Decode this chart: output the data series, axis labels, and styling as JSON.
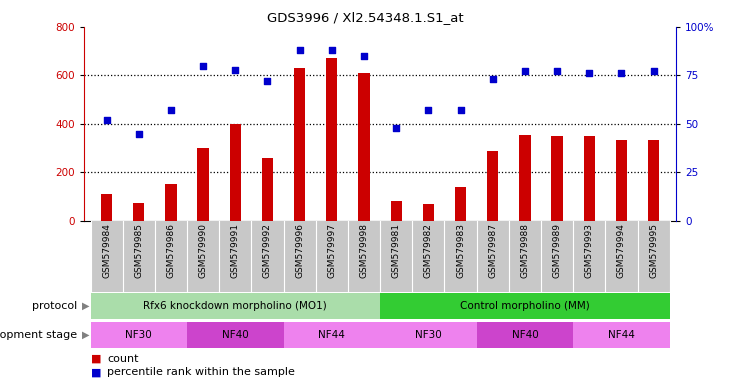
{
  "title": "GDS3996 / Xl2.54348.1.S1_at",
  "samples": [
    "GSM579984",
    "GSM579985",
    "GSM579986",
    "GSM579990",
    "GSM579991",
    "GSM579992",
    "GSM579996",
    "GSM579997",
    "GSM579998",
    "GSM579981",
    "GSM579982",
    "GSM579983",
    "GSM579987",
    "GSM579988",
    "GSM579989",
    "GSM579993",
    "GSM579994",
    "GSM579995"
  ],
  "counts": [
    110,
    75,
    150,
    300,
    400,
    260,
    630,
    670,
    610,
    80,
    70,
    140,
    290,
    355,
    350,
    350,
    335,
    335
  ],
  "percentiles": [
    52,
    45,
    57,
    80,
    78,
    72,
    88,
    88,
    85,
    48,
    57,
    57,
    73,
    77,
    77,
    76,
    76,
    77
  ],
  "ylim_left": [
    0,
    800
  ],
  "ylim_right": [
    0,
    100
  ],
  "yticks_left": [
    0,
    200,
    400,
    600,
    800
  ],
  "yticks_right": [
    0,
    25,
    50,
    75,
    100
  ],
  "bar_color": "#cc0000",
  "dot_color": "#0000cc",
  "protocol_groups": [
    {
      "label": "Rfx6 knockdown morpholino (MO1)",
      "start": 0,
      "end": 9,
      "color": "#aaddaa"
    },
    {
      "label": "Control morpholino (MM)",
      "start": 9,
      "end": 18,
      "color": "#33cc33"
    }
  ],
  "stage_groups": [
    {
      "label": "NF30",
      "start": 0,
      "end": 3,
      "color": "#ee82ee"
    },
    {
      "label": "NF40",
      "start": 3,
      "end": 6,
      "color": "#cc44cc"
    },
    {
      "label": "NF44",
      "start": 6,
      "end": 9,
      "color": "#ee82ee"
    },
    {
      "label": "NF30",
      "start": 9,
      "end": 12,
      "color": "#ee82ee"
    },
    {
      "label": "NF40",
      "start": 12,
      "end": 15,
      "color": "#cc44cc"
    },
    {
      "label": "NF44",
      "start": 15,
      "end": 18,
      "color": "#ee82ee"
    }
  ],
  "legend_items": [
    {
      "label": "count",
      "color": "#cc0000"
    },
    {
      "label": "percentile rank within the sample",
      "color": "#0000cc"
    }
  ],
  "xtick_bg_color": "#c8c8c8",
  "protocol_label": "protocol",
  "stage_label": "development stage"
}
